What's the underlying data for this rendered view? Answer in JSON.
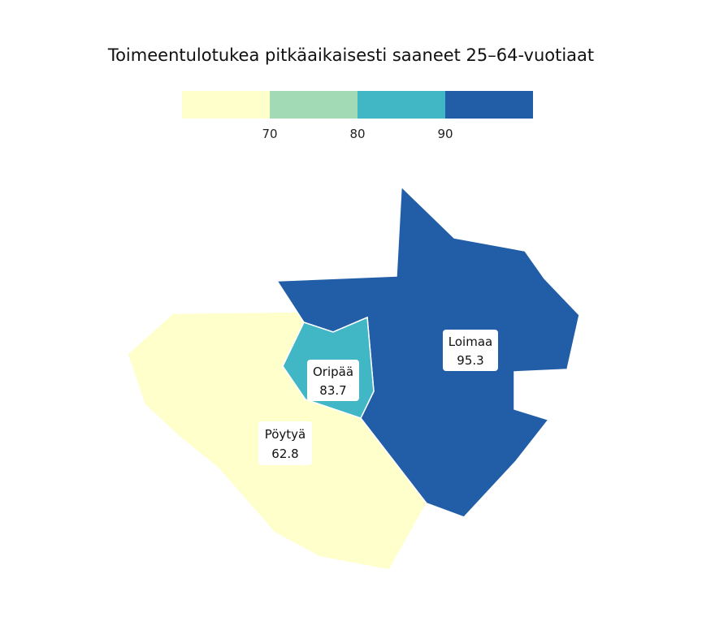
{
  "title": "Toimeentulotukea pitkäaikaisesti saaneet 25–64-vuotiaat",
  "legend": {
    "breaks": [
      "70",
      "80",
      "90"
    ],
    "colors": [
      "#ffffcc",
      "#a1dab4",
      "#41b6c4",
      "#225ea8"
    ]
  },
  "regions": [
    {
      "name": "Pöytyä",
      "value": "62.8",
      "color": "#ffffcc"
    },
    {
      "name": "Oripää",
      "value": "83.7",
      "color": "#41b6c4"
    },
    {
      "name": "Loimaa",
      "value": "95.3",
      "color": "#225ea8"
    }
  ],
  "chart_data": {
    "type": "choropleth",
    "title": "Toimeentulotukea pitkäaikaisesti saaneet 25–64-vuotiaat",
    "areas": [
      {
        "name": "Pöytyä",
        "value": 62.8
      },
      {
        "name": "Oripää",
        "value": 83.7
      },
      {
        "name": "Loimaa",
        "value": 95.3
      }
    ],
    "legend_breaks": [
      70,
      80,
      90
    ],
    "legend_position": "top"
  }
}
